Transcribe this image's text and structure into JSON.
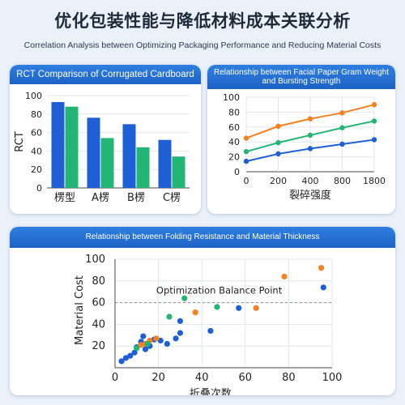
{
  "header": {
    "title": "优化包装性能与降低材料成本关联分析",
    "subtitle": "Correlation Analysis between Optimizing Packaging Performance and Reducing Material Costs"
  },
  "colors": {
    "blue": "#1f5fd6",
    "green": "#22b573",
    "orange": "#f58220",
    "header": "#1d62c4"
  },
  "chart_data": [
    {
      "type": "bar",
      "title": "RCT Comparison of Corrugated Cardboard",
      "ylabel": "RCT",
      "xlabel": "",
      "categories": [
        "楞型",
        "A楞",
        "B楞",
        "C楞"
      ],
      "series": [
        {
          "color": "blue",
          "values": [
            93,
            76,
            69,
            52
          ]
        },
        {
          "color": "green",
          "values": [
            88,
            54,
            44,
            34
          ]
        }
      ],
      "ylim": [
        0,
        100
      ],
      "yticks": [
        0,
        20,
        40,
        60,
        80,
        100
      ],
      "grid": "horizontal"
    },
    {
      "type": "line",
      "title": "Relationship between Facial Paper Gram Weight and Bursting Strength",
      "xlabel": "裂碎强度",
      "ylabel": "",
      "x": [
        "0",
        "200",
        "400",
        "800",
        "1800"
      ],
      "series": [
        {
          "color": "orange",
          "values": [
            45,
            61,
            71,
            79,
            90
          ]
        },
        {
          "color": "green",
          "values": [
            27,
            39,
            49,
            59,
            68
          ]
        },
        {
          "color": "blue",
          "values": [
            14,
            24,
            31,
            37,
            43
          ]
        }
      ],
      "ylim": [
        0,
        100
      ],
      "yticks": [
        0,
        20,
        40,
        60,
        80,
        100
      ],
      "grid": "both"
    },
    {
      "type": "scatter",
      "title": "Relationship between Folding Resistance and Material Thickness",
      "xlabel": "折叠次数",
      "ylabel": "Material Cost",
      "xlim": [
        0,
        100
      ],
      "ylim": [
        0,
        100
      ],
      "xticks": [
        0,
        20,
        40,
        60,
        80,
        100
      ],
      "yticks": [
        20,
        40,
        60,
        80,
        100
      ],
      "grid": "both",
      "reference_line": {
        "y": 60,
        "label": "Optimization Balance Point"
      },
      "series": [
        {
          "color": "blue",
          "points": [
            [
              3,
              6
            ],
            [
              5,
              9
            ],
            [
              7,
              11
            ],
            [
              9,
              14
            ],
            [
              10,
              19
            ],
            [
              12,
              24
            ],
            [
              13,
              29
            ],
            [
              14,
              17
            ],
            [
              16,
              20
            ],
            [
              18,
              26
            ],
            [
              21,
              25
            ],
            [
              24,
              22
            ],
            [
              28,
              27
            ],
            [
              30,
              32
            ],
            [
              30,
              43
            ],
            [
              44,
              34
            ],
            [
              57,
              55
            ],
            [
              96,
              74
            ]
          ]
        },
        {
          "color": "orange",
          "points": [
            [
              12,
              21
            ],
            [
              14,
              22
            ],
            [
              16,
              25
            ],
            [
              19,
              27
            ],
            [
              37,
              51
            ],
            [
              65,
              55
            ],
            [
              78,
              84
            ],
            [
              95,
              92
            ]
          ]
        },
        {
          "color": "green",
          "points": [
            [
              10,
              18
            ],
            [
              15,
              22
            ],
            [
              25,
              47
            ],
            [
              32,
              64
            ],
            [
              47,
              56
            ]
          ]
        }
      ]
    }
  ]
}
